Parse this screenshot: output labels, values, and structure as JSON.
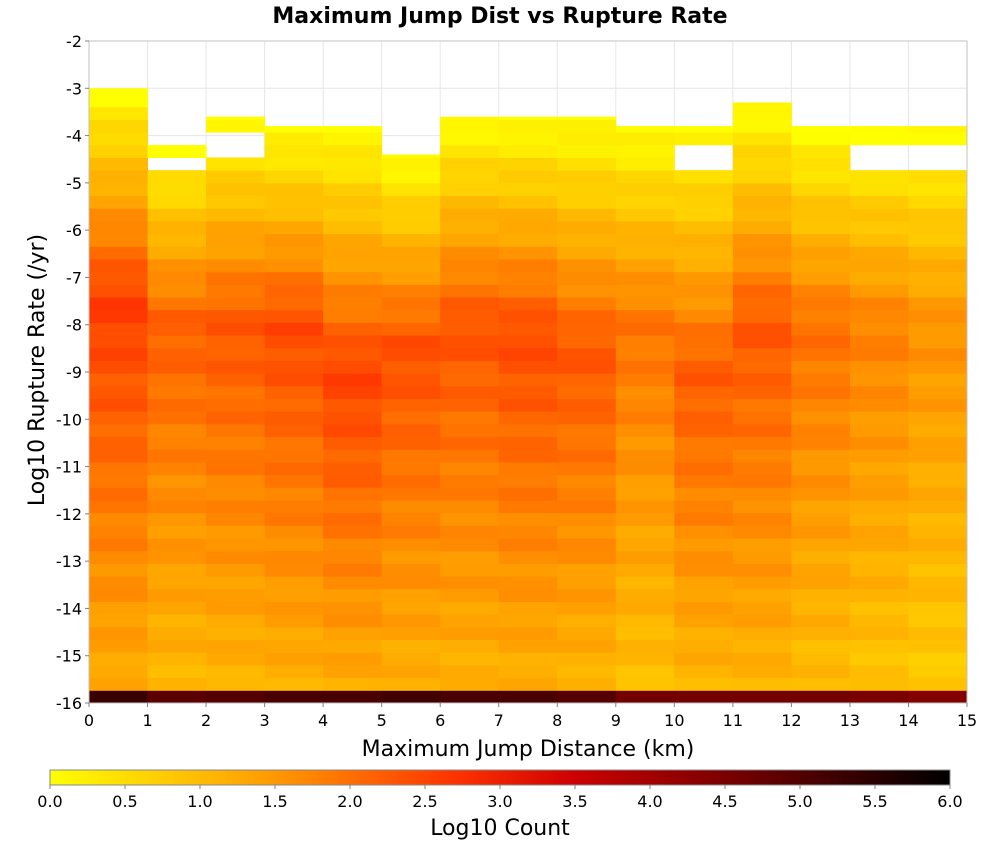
{
  "chart_data": {
    "type": "heatmap",
    "title": "Maximum Jump Dist vs Rupture Rate",
    "xlabel": "Maximum Jump Distance (km)",
    "ylabel": "Log10 Rupture Rate (/yr)",
    "xlim": [
      0,
      15
    ],
    "ylim": [
      -16,
      -2
    ],
    "x_ticks": [
      "0",
      "1",
      "2",
      "3",
      "4",
      "5",
      "6",
      "7",
      "8",
      "9",
      "10",
      "11",
      "12",
      "13",
      "14",
      "15"
    ],
    "y_ticks": [
      "-2",
      "-3",
      "-4",
      "-5",
      "-6",
      "-7",
      "-8",
      "-9",
      "-10",
      "-11",
      "-12",
      "-13",
      "-14",
      "-15",
      "-16"
    ],
    "grid": true,
    "x_bin_width": 1,
    "y_bin_height": 0.2683,
    "x_bin_centers": [
      0.5,
      1.5,
      2.5,
      3.5,
      4.5,
      5.5,
      6.5,
      7.5,
      8.5,
      9.5,
      10.5,
      11.5,
      12.5,
      13.5,
      14.5
    ],
    "rate_ranges": [
      [
        -3.0,
        -16.0
      ],
      [
        -4.2,
        -16.0
      ],
      [
        -3.6,
        -16.0
      ],
      [
        -3.8,
        -16.0
      ],
      [
        -3.8,
        -16.0
      ],
      [
        -4.4,
        -16.0
      ],
      [
        -3.6,
        -16.0
      ],
      [
        -3.6,
        -16.0
      ],
      [
        -3.6,
        -16.0
      ],
      [
        -3.8,
        -16.0
      ],
      [
        -3.8,
        -16.0
      ],
      [
        -3.3,
        -16.0
      ],
      [
        -3.8,
        -16.0
      ],
      [
        -3.8,
        -16.0
      ],
      [
        -3.8,
        -16.0
      ]
    ],
    "gaps": [
      [
        1,
        -4.4,
        -4.7
      ],
      [
        2,
        -4.0,
        -4.4
      ],
      [
        10,
        -4.1,
        -4.7
      ],
      [
        13,
        -4.1,
        -4.7
      ],
      [
        14,
        -4.1,
        -4.7
      ]
    ],
    "peak_log10_count": [
      2.6,
      2.2,
      2.3,
      2.45,
      2.55,
      2.4,
      2.35,
      2.45,
      2.3,
      1.95,
      2.25,
      2.3,
      2.0,
      1.8,
      1.6
    ],
    "peak_rate": [
      -7.5,
      -8.0,
      -8.0,
      -8.0,
      -9.0,
      -8.5,
      -8.0,
      -8.2,
      -8.5,
      -8.0,
      -9.0,
      -8.0,
      -8.0,
      -8.0,
      -8.0
    ],
    "bottom_bin_log10_count": [
      5.3,
      4.9,
      5.0,
      5.1,
      5.1,
      5.2,
      5.1,
      5.1,
      5.0,
      4.6,
      4.6,
      4.6,
      4.6,
      4.5,
      4.4
    ],
    "colorbar": {
      "label": "Log10 Count",
      "min": 0,
      "max": 6,
      "ticks": [
        "0.0",
        "0.5",
        "1.0",
        "1.5",
        "2.0",
        "2.5",
        "3.0",
        "3.5",
        "4.0",
        "4.5",
        "5.0",
        "5.5",
        "6.0"
      ],
      "colors": [
        "#ffff00",
        "#ff9900",
        "#ff3300",
        "#cc0000",
        "#000000"
      ],
      "color_stops": [
        0,
        1.5,
        2.7,
        3.5,
        6
      ]
    }
  }
}
